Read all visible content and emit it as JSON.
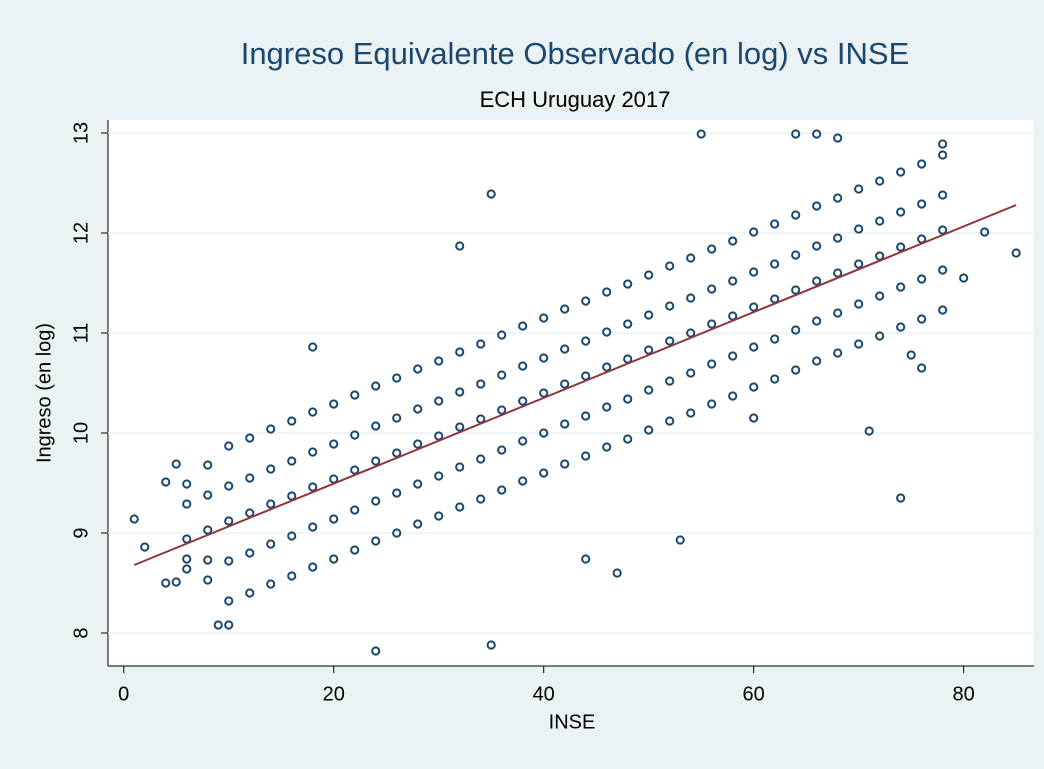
{
  "chart_data": {
    "type": "scatter",
    "title": "Ingreso Equivalente Observado (en log) vs INSE",
    "subtitle": "ECH Uruguay 2017",
    "xlabel": "INSE",
    "ylabel": "Ingreso (en log)",
    "xlim": [
      -1.5,
      86.7
    ],
    "ylim": [
      7.67,
      13.13
    ],
    "xticks": [
      0,
      20,
      40,
      60,
      80
    ],
    "yticks": [
      8,
      9,
      10,
      11,
      12,
      13
    ],
    "series": [
      {
        "color": "#1a476f",
        "x": [
          1,
          2,
          4,
          5,
          4,
          5,
          9,
          10,
          35,
          35,
          24,
          18,
          32,
          74,
          71,
          85,
          82,
          80,
          78,
          55,
          64,
          66,
          68,
          47,
          44,
          53,
          60,
          76,
          75,
          6,
          6,
          6,
          6,
          6,
          8,
          8,
          8,
          8,
          8,
          10,
          10,
          10,
          10,
          10,
          12,
          12,
          12,
          12,
          12,
          14,
          14,
          14,
          14,
          14,
          16,
          16,
          16,
          16,
          16,
          18,
          18,
          18,
          18,
          18,
          20,
          20,
          20,
          20,
          20,
          22,
          22,
          22,
          22,
          22,
          24,
          24,
          24,
          24,
          24,
          26,
          26,
          26,
          26,
          26,
          28,
          28,
          28,
          28,
          28,
          30,
          30,
          30,
          30,
          30,
          32,
          32,
          32,
          32,
          32,
          34,
          34,
          34,
          34,
          34,
          36,
          36,
          36,
          36,
          36,
          38,
          38,
          38,
          38,
          38,
          40,
          40,
          40,
          40,
          40,
          42,
          42,
          42,
          42,
          42,
          44,
          44,
          44,
          44,
          44,
          46,
          46,
          46,
          46,
          46,
          48,
          48,
          48,
          48,
          48,
          50,
          50,
          50,
          50,
          50,
          52,
          52,
          52,
          52,
          52,
          54,
          54,
          54,
          54,
          54,
          56,
          56,
          56,
          56,
          56,
          58,
          58,
          58,
          58,
          58,
          60,
          60,
          60,
          60,
          60,
          62,
          62,
          62,
          62,
          62,
          64,
          64,
          64,
          64,
          64,
          66,
          66,
          66,
          66,
          66,
          68,
          68,
          68,
          68,
          68,
          70,
          70,
          70,
          70,
          70,
          72,
          72,
          72,
          72,
          72,
          74,
          74,
          74,
          74,
          74,
          76,
          76,
          76,
          76,
          76,
          78,
          78,
          78,
          78,
          78
        ],
        "values": [
          9.14,
          8.86,
          8.5,
          8.51,
          9.51,
          9.69,
          8.08,
          8.08,
          12.39,
          7.88,
          7.82,
          10.86,
          11.87,
          9.35,
          10.02,
          11.8,
          12.01,
          11.55,
          12.89,
          12.99,
          12.99,
          12.99,
          12.95,
          8.6,
          8.74,
          8.93,
          10.15,
          10.65,
          10.78,
          8.64,
          8.74,
          8.94,
          9.29,
          9.49,
          8.53,
          8.73,
          9.03,
          9.38,
          9.68,
          8.32,
          8.72,
          9.12,
          9.47,
          9.87,
          8.4,
          8.8,
          9.2,
          9.55,
          9.95,
          8.49,
          8.89,
          9.29,
          9.64,
          10.04,
          8.57,
          8.97,
          9.37,
          9.72,
          10.12,
          8.66,
          9.06,
          9.46,
          9.81,
          10.21,
          8.74,
          9.14,
          9.54,
          9.89,
          10.29,
          8.83,
          9.23,
          9.63,
          9.98,
          10.38,
          8.92,
          9.32,
          9.72,
          10.07,
          10.47,
          9.0,
          9.4,
          9.8,
          10.15,
          10.55,
          9.09,
          9.49,
          9.89,
          10.24,
          10.64,
          9.17,
          9.57,
          9.97,
          10.32,
          10.72,
          9.26,
          9.66,
          10.06,
          10.41,
          10.81,
          9.34,
          9.74,
          10.14,
          10.49,
          10.89,
          9.43,
          9.83,
          10.23,
          10.58,
          10.98,
          9.52,
          9.92,
          10.32,
          10.67,
          11.07,
          9.6,
          10.0,
          10.4,
          10.75,
          11.15,
          9.69,
          10.09,
          10.49,
          10.84,
          11.24,
          9.77,
          10.17,
          10.57,
          10.92,
          11.32,
          9.86,
          10.26,
          10.66,
          11.01,
          11.41,
          9.94,
          10.34,
          10.74,
          11.09,
          11.49,
          10.03,
          10.43,
          10.83,
          11.18,
          11.58,
          10.12,
          10.52,
          10.92,
          11.27,
          11.67,
          10.2,
          10.6,
          11.0,
          11.35,
          11.75,
          10.29,
          10.69,
          11.09,
          11.44,
          11.84,
          10.37,
          10.77,
          11.17,
          11.52,
          11.92,
          10.46,
          10.86,
          11.26,
          11.61,
          12.01,
          10.54,
          10.94,
          11.34,
          11.69,
          12.09,
          10.63,
          11.03,
          11.43,
          11.78,
          12.18,
          10.72,
          11.12,
          11.52,
          11.87,
          12.27,
          10.8,
          11.2,
          11.6,
          11.95,
          12.35,
          10.89,
          11.29,
          11.69,
          12.04,
          12.44,
          10.97,
          11.37,
          11.77,
          12.12,
          12.52,
          11.06,
          11.46,
          11.86,
          12.21,
          12.61,
          11.14,
          11.54,
          11.94,
          12.29,
          12.69,
          11.23,
          11.63,
          12.03,
          12.38,
          12.78
        ]
      },
      {
        "type": "line",
        "color": "#90353b",
        "x": [
          1,
          85
        ],
        "values": [
          8.68,
          12.28
        ]
      }
    ]
  }
}
